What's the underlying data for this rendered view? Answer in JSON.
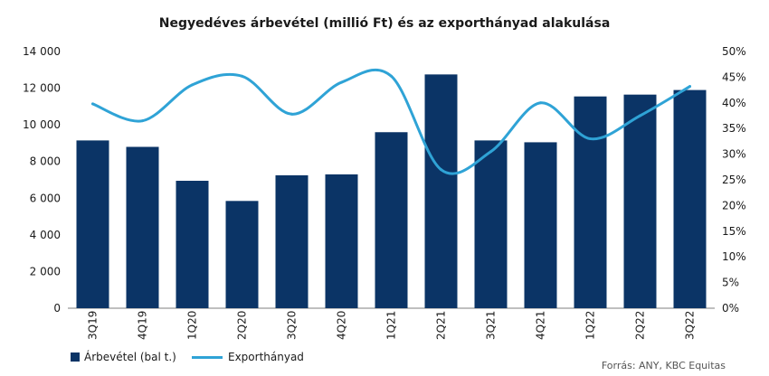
{
  "chart_data": {
    "type": "bar",
    "title": "Negyedéves árbevétel (millió Ft) és az exporthányad alakulása",
    "categories": [
      "3Q19",
      "4Q19",
      "1Q20",
      "2Q20",
      "3Q20",
      "4Q20",
      "1Q21",
      "2Q21",
      "3Q21",
      "4Q21",
      "1Q22",
      "2Q22",
      "3Q22"
    ],
    "series": [
      {
        "name": "Árbevétel (bal t.)",
        "type": "bar",
        "axis": "left",
        "color": "#0b3466",
        "values": [
          9150,
          8800,
          6950,
          5850,
          7250,
          7300,
          9600,
          12750,
          9150,
          9050,
          11550,
          11650,
          11900
        ]
      },
      {
        "name": "Exporthányad",
        "type": "line",
        "axis": "right",
        "color": "#2fa3d6",
        "values": [
          39.8,
          36.5,
          43.5,
          45.2,
          37.8,
          44.0,
          45.2,
          27.0,
          30.5,
          40.0,
          33.0,
          37.5,
          43.2
        ]
      }
    ],
    "y_left": {
      "min": 0,
      "max": 14000,
      "ticks": [
        0,
        2000,
        4000,
        6000,
        8000,
        10000,
        12000,
        14000
      ],
      "tick_labels": [
        "0",
        "2 000",
        "4 000",
        "6 000",
        "8 000",
        "10 000",
        "12 000",
        "14 000"
      ]
    },
    "y_right": {
      "min": 0,
      "max": 50,
      "tick_labels": [
        "0%",
        "5%",
        "10%",
        "15%",
        "20%",
        "25%",
        "30%",
        "35%",
        "40%",
        "45%",
        "50%"
      ]
    },
    "grid": false,
    "legend_position": "bottom-left",
    "x_label_rotation": "vertical"
  },
  "legend": {
    "bar_label": "Árbevétel (bal t.)",
    "line_label": "Exporthányad"
  },
  "source_note": "Forrás: ANY, KBC Equitas"
}
